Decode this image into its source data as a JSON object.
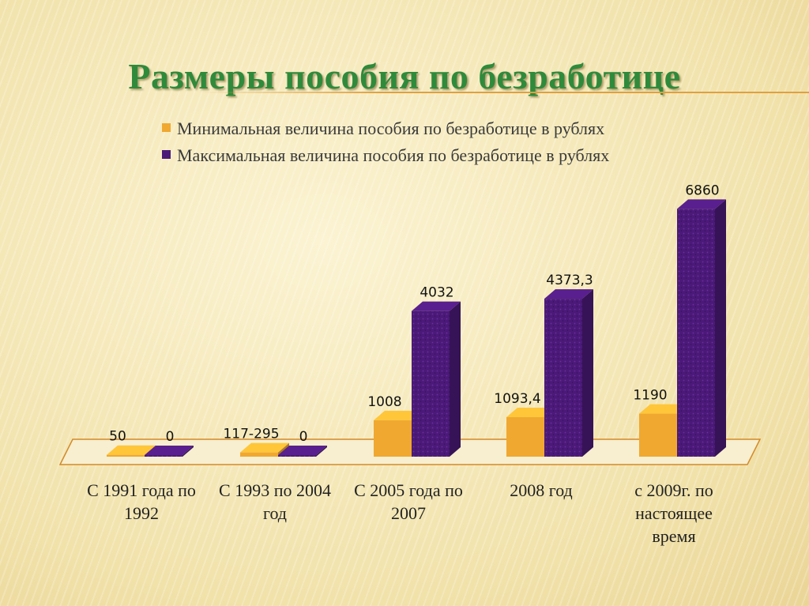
{
  "chart_data": {
    "type": "bar",
    "title": "Размеры пособия по безработице",
    "categories": [
      "С 1991 года по 1992",
      "С 1993 по 2004 год",
      "С 2005 года по 2007",
      "2008 год",
      "с 2009г. по настоящее время"
    ],
    "series": [
      {
        "name": "Минимальная величина пособия по безработице в рублях",
        "color": "#f0a830",
        "values": [
          50,
          117,
          1008,
          1093.4,
          1190
        ],
        "labels": [
          "50",
          "117-295",
          "1008",
          "1093,4",
          "1190"
        ]
      },
      {
        "name": "Максимальная величина пособия по безработице в рублях",
        "color": "#4b1a78",
        "values": [
          0,
          0,
          4032,
          4373.3,
          6860
        ],
        "labels": [
          "0",
          "0",
          "4032",
          "4373,3",
          "6860"
        ]
      }
    ],
    "ylim": [
      0,
      7000
    ],
    "grid": false,
    "legend_position": "top"
  }
}
